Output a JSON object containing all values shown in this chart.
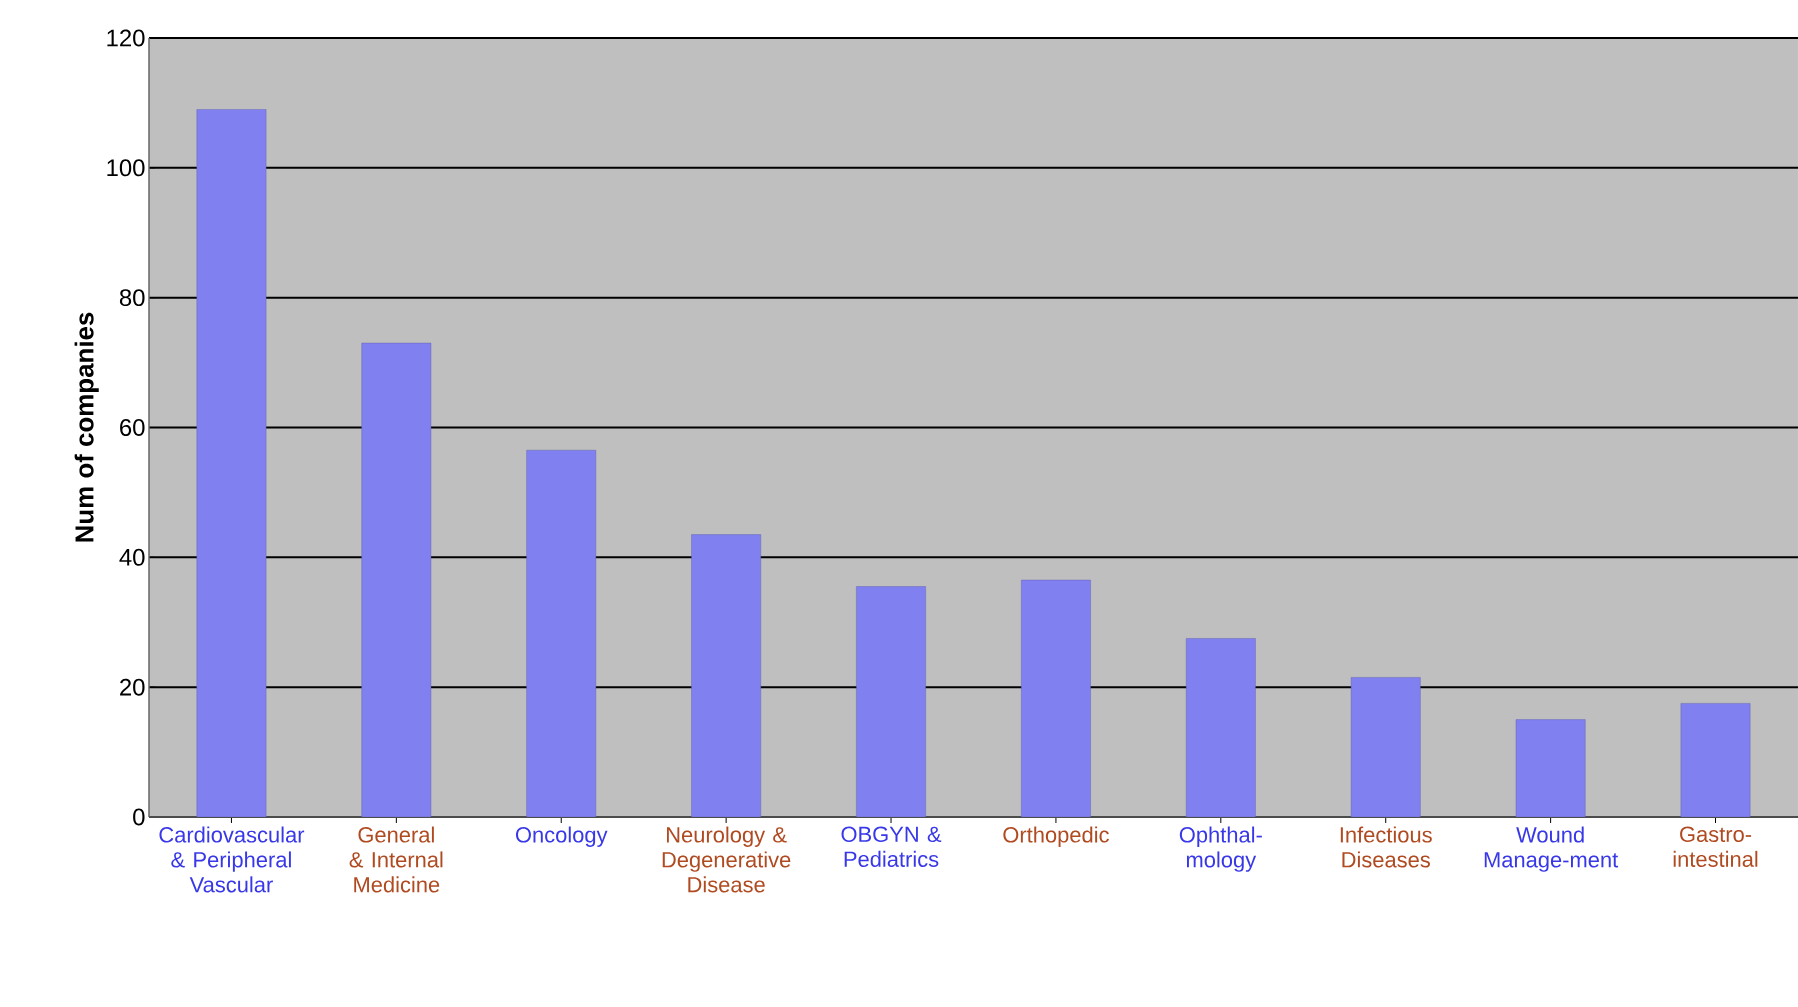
{
  "chart_data": {
    "type": "bar",
    "ylabel": "Num of companies",
    "categories": [
      "Cardiovascular & Peripheral Vascular",
      "General & Internal Medicine",
      "Oncology",
      "Neurology & Degenerative Disease",
      "OBGYN & Pediatrics",
      "Orthopedic",
      "Ophthal-mology",
      "Infectious Diseases",
      "Wound Manage-ment",
      "Gastro-intestinal"
    ],
    "values": [
      109,
      73,
      56.5,
      43.5,
      35.5,
      36.5,
      27.5,
      21.5,
      15,
      17.5
    ],
    "color": "#8080f0",
    "ylim": [
      0,
      120
    ],
    "yticks": [
      0,
      20,
      40,
      60,
      80,
      100,
      120
    ],
    "grid": "y"
  }
}
